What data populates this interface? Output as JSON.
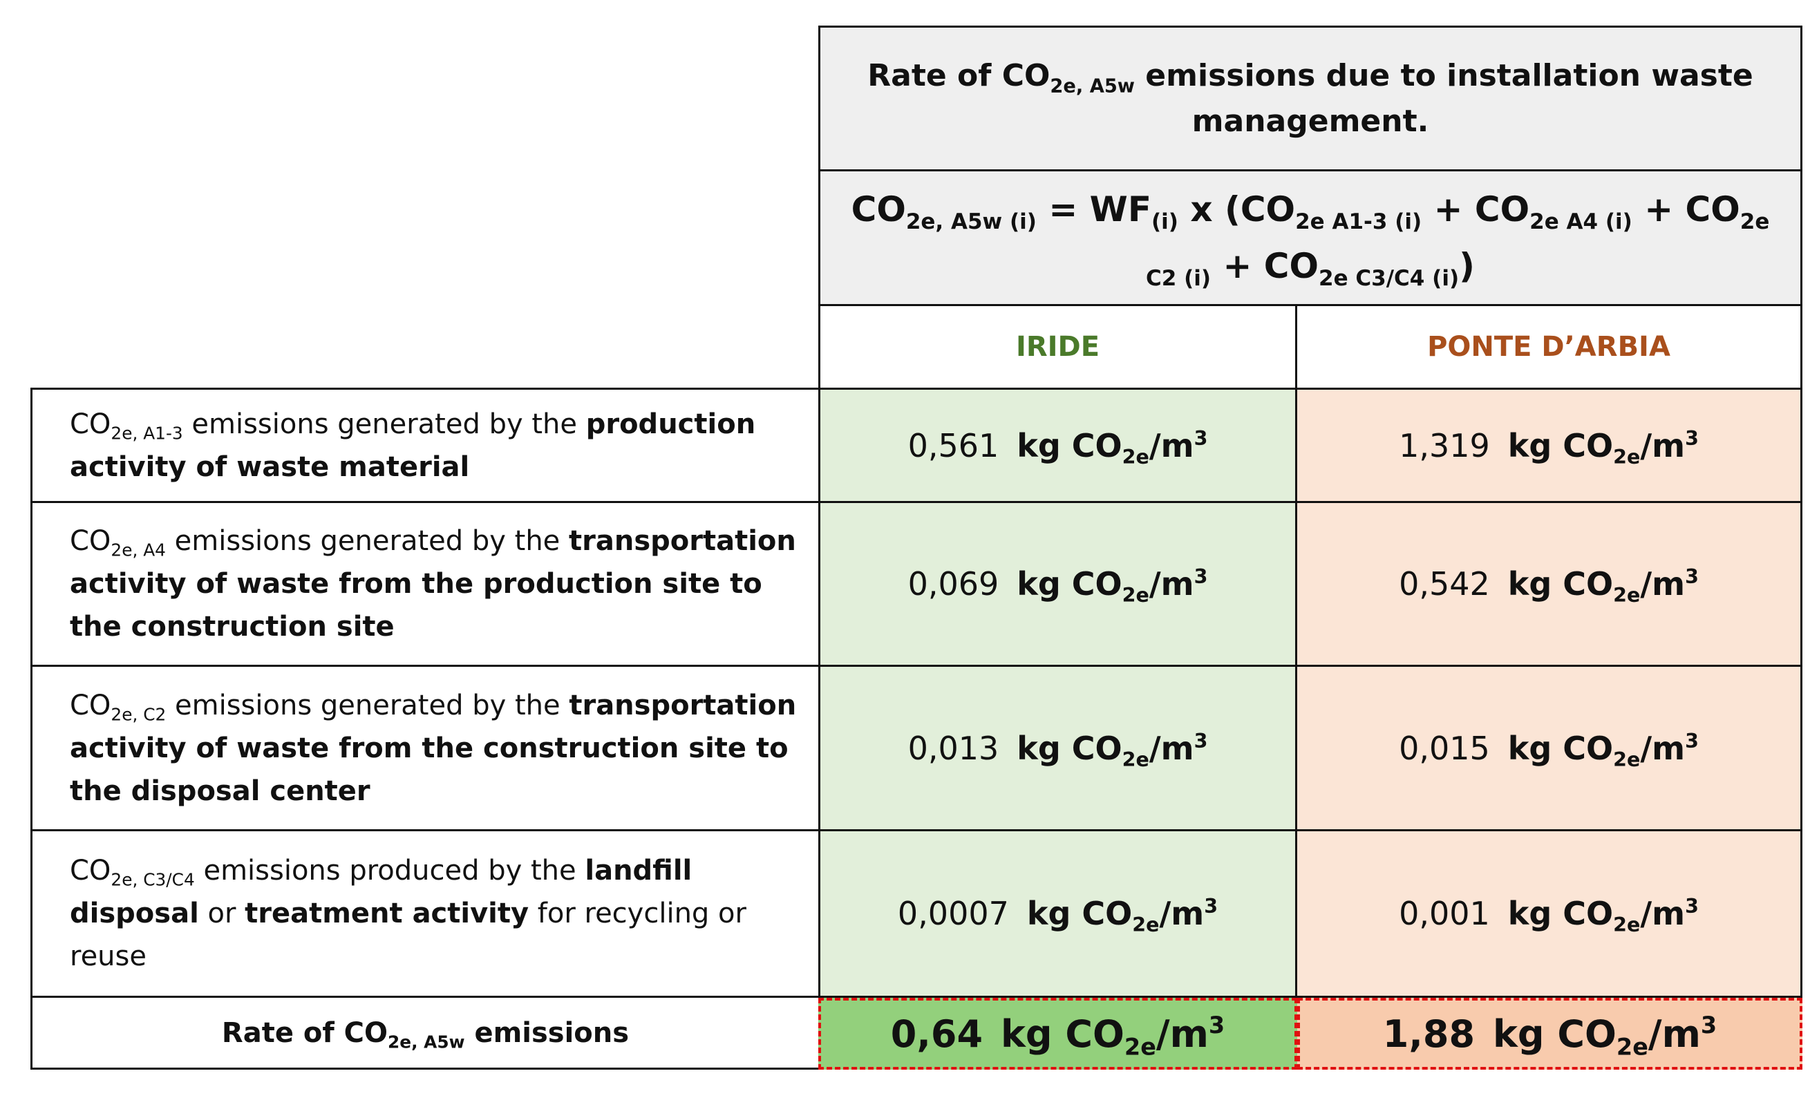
{
  "header": {
    "title": [
      {
        "text": "Rate of CO",
        "sub": "2e, A5w"
      },
      {
        "text": " emissions due to installation waste management."
      }
    ],
    "formula": [
      {
        "text": "CO",
        "sub": "2e, A5w (i)"
      },
      {
        "text": " = WF",
        "sub": "(i)"
      },
      {
        "text": " x (CO",
        "sub": "2e A1-3 (i)"
      },
      {
        "text": " + CO",
        "sub": "2e A4 (i)"
      },
      {
        "text": " + CO",
        "sub": "2e C2 (i)"
      },
      {
        "text": " + CO",
        "sub": "2e C3/C4 (i)"
      },
      {
        "text": ")"
      }
    ]
  },
  "columns": [
    {
      "text": "IRIDE",
      "color": "#4a7a2a"
    },
    {
      "text": "PONTE D’ARBIA",
      "color": "#a94f1c"
    }
  ],
  "unit": [
    {
      "text": "kg CO",
      "sub": "2e"
    },
    {
      "text": "/m",
      "sup": "3"
    }
  ],
  "rows": [
    {
      "label": [
        {
          "text": "CO",
          "sub": "2e, A1-3"
        },
        {
          "text": " emissions generated by the "
        },
        {
          "text": "production activity of waste material",
          "bold": true
        }
      ],
      "values": [
        "0,561",
        "1,319"
      ]
    },
    {
      "label": [
        {
          "text": "CO",
          "sub": "2e, A4"
        },
        {
          "text": " emissions generated by the "
        },
        {
          "text": "transportation activity of waste from the production site to the construction site",
          "bold": true
        }
      ],
      "values": [
        "0,069",
        "0,542"
      ]
    },
    {
      "label": [
        {
          "text": "CO",
          "sub": "2e, C2"
        },
        {
          "text": " emissions generated by the "
        },
        {
          "text": "transportation activity of waste from the construction site to the disposal center",
          "bold": true
        }
      ],
      "values": [
        "0,013",
        "0,015"
      ]
    },
    {
      "label": [
        {
          "text": "CO",
          "sub": "2e, C3/C4"
        },
        {
          "text": " emissions produced by the "
        },
        {
          "text": "landfill disposal",
          "bold": true
        },
        {
          "text": " or "
        },
        {
          "text": "treatment activity",
          "bold": true
        },
        {
          "text": " for recycling or reuse"
        }
      ],
      "values": [
        "0,0007",
        "0,001"
      ]
    }
  ],
  "total": {
    "label": [
      {
        "text": "Rate of CO",
        "sub": "2e, A5w"
      },
      {
        "text": " emissions"
      }
    ],
    "values": [
      "0,64",
      "1,88"
    ],
    "colors": [
      "#93d07c",
      "#f8cbad"
    ]
  }
}
